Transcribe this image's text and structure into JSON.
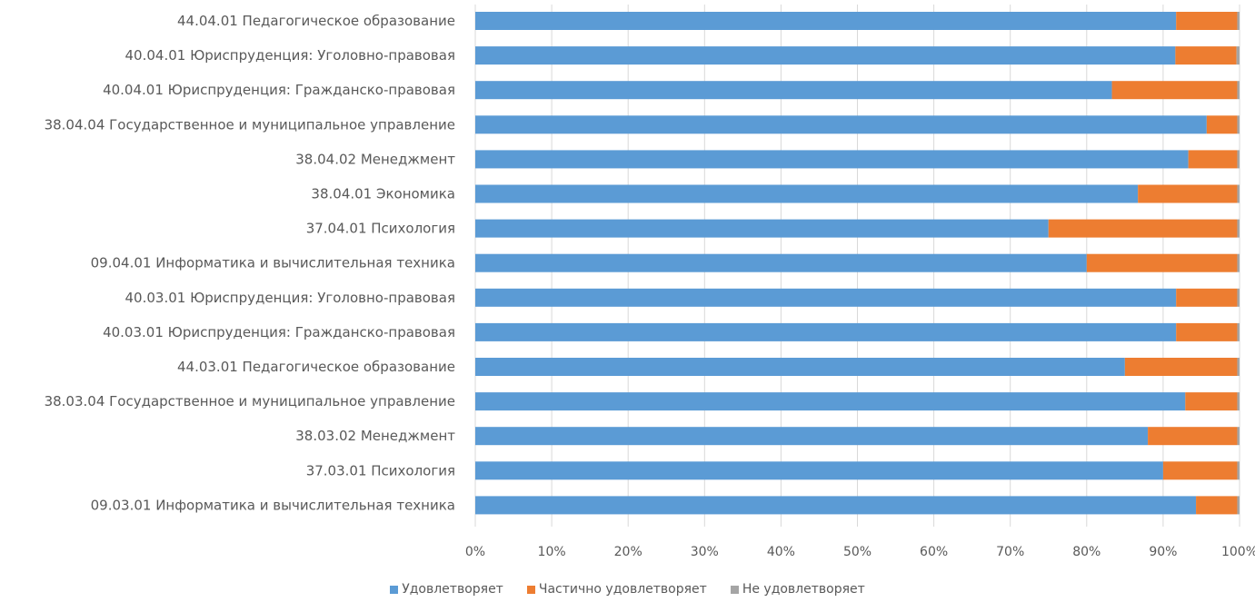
{
  "chart_data": {
    "type": "bar",
    "orientation": "horizontal",
    "stacked": "percent",
    "title": "",
    "xlabel": "",
    "ylabel": "",
    "xlim": [
      0,
      100
    ],
    "x_ticks": [
      "0%",
      "10%",
      "20%",
      "30%",
      "40%",
      "50%",
      "60%",
      "70%",
      "80%",
      "90%",
      "100%"
    ],
    "grid": "vertical",
    "legend_position": "bottom",
    "categories": [
      "44.04.01 Педагогическое образование",
      "40.04.01 Юриспруденция: Уголовно-правовая",
      "40.04.01 Юриспруденция: Гражданско-правовая",
      "38.04.04 Государственное и муниципальное управление",
      "38.04.02 Менеджмент",
      "38.04.01 Экономика",
      "37.04.01 Психология",
      "09.04.01 Информатика и вычислительная техника",
      "40.03.01 Юриспруденция: Уголовно-правовая",
      "40.03.01 Юриспруденция: Гражданско-правовая",
      "44.03.01 Педагогическое образование",
      "38.03.04 Государственное и муниципальное управление",
      "38.03.02 Менеджмент",
      "37.03.01 Психология",
      "09.03.01 Информатика и вычислительная техника"
    ],
    "series": [
      {
        "name": "Удовлетворяет",
        "color": "#5b9bd5",
        "values": [
          91.7,
          91.6,
          83.3,
          95.7,
          93.3,
          86.7,
          75.0,
          80.0,
          91.7,
          91.7,
          85.0,
          92.9,
          88.0,
          90.0,
          94.3
        ]
      },
      {
        "name": "Частично удовлетворяет",
        "color": "#ed7d31",
        "values": [
          8.0,
          8.0,
          16.4,
          4.0,
          6.4,
          13.0,
          24.7,
          19.7,
          8.0,
          8.0,
          14.7,
          6.8,
          11.7,
          9.7,
          5.4
        ]
      },
      {
        "name": "Не удовлетворяет",
        "color": "#a5a5a5",
        "values": [
          0.3,
          0.4,
          0.3,
          0.3,
          0.3,
          0.3,
          0.3,
          0.3,
          0.3,
          0.3,
          0.3,
          0.3,
          0.3,
          0.3,
          0.3
        ]
      }
    ]
  }
}
